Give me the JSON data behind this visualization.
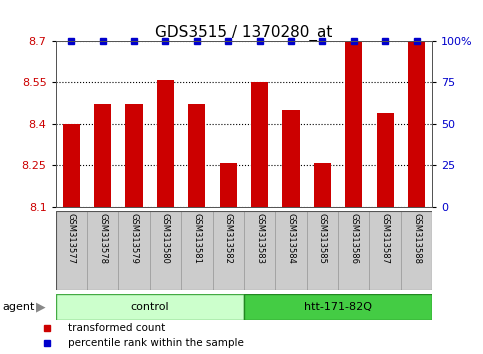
{
  "title": "GDS3515 / 1370280_at",
  "samples": [
    "GSM313577",
    "GSM313578",
    "GSM313579",
    "GSM313580",
    "GSM313581",
    "GSM313582",
    "GSM313583",
    "GSM313584",
    "GSM313585",
    "GSM313586",
    "GSM313587",
    "GSM313588"
  ],
  "bar_values": [
    8.4,
    8.47,
    8.47,
    8.56,
    8.47,
    8.26,
    8.55,
    8.45,
    8.26,
    8.7,
    8.44,
    8.7
  ],
  "percentile_values": [
    100,
    100,
    100,
    100,
    100,
    100,
    100,
    100,
    100,
    100,
    100,
    100
  ],
  "bar_color": "#cc0000",
  "percentile_color": "#0000cc",
  "ymin": 8.1,
  "ymax": 8.7,
  "yticks_left": [
    8.1,
    8.25,
    8.4,
    8.55,
    8.7
  ],
  "yticks_right": [
    0,
    25,
    50,
    75,
    100
  ],
  "groups": [
    {
      "label": "control",
      "start": 0,
      "end": 5,
      "color": "#ccffcc",
      "border": "#44aa44"
    },
    {
      "label": "htt-171-82Q",
      "start": 6,
      "end": 11,
      "color": "#44cc44",
      "border": "#228822"
    }
  ],
  "agent_label": "agent",
  "legend_bar_label": "transformed count",
  "legend_dot_label": "percentile rank within the sample",
  "background_color": "#ffffff",
  "plot_bg_color": "#ffffff",
  "grid_color": "#000000",
  "tick_label_area_color": "#cccccc",
  "title_fontsize": 11,
  "tick_fontsize": 8,
  "sample_fontsize": 6,
  "label_fontsize": 8
}
